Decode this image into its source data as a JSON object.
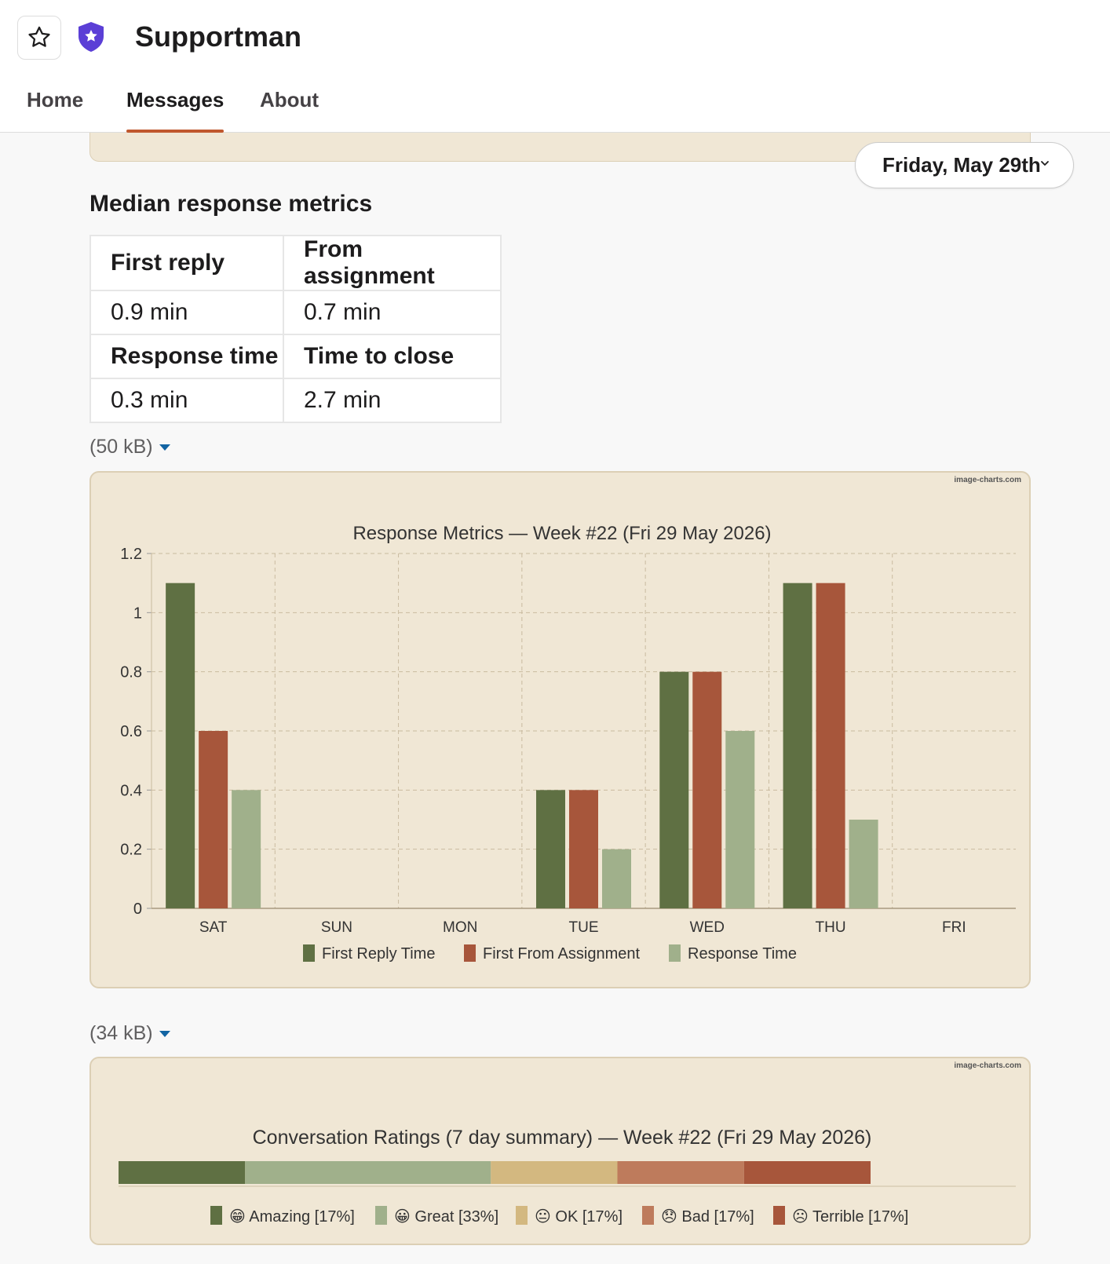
{
  "app": {
    "title": "Supportman"
  },
  "tabs": [
    {
      "label": "Home",
      "active": false
    },
    {
      "label": "Messages",
      "active": true
    },
    {
      "label": "About",
      "active": false
    }
  ],
  "date_picker": {
    "label": "Friday, May 29th"
  },
  "metrics": {
    "title": "Median response metrics",
    "rows": [
      {
        "h1": "First reply",
        "h2": "From assignment",
        "v1": "0.9 min",
        "v2": "0.7 min"
      },
      {
        "h1": "Response time",
        "h2": "Time to close",
        "v1": "0.3 min",
        "v2": "2.7 min"
      }
    ]
  },
  "attachments": [
    {
      "size": "(50 kB)"
    },
    {
      "size": "(34 kB)"
    }
  ],
  "colors": {
    "accent": "#c0582e",
    "card_bg": "#f0e7d5",
    "dark_green": "#5f7043",
    "rust": "#a7563b",
    "light_green": "#a0b08b",
    "tan": "#d3b880",
    "salmon": "#be7b5c"
  },
  "chart_data": [
    {
      "type": "bar",
      "watermark": "image-charts.com",
      "title": "Response Metrics — Week #22 (Fri 29 May 2026)",
      "categories": [
        "SAT",
        "SUN",
        "MON",
        "TUE",
        "WED",
        "THU",
        "FRI"
      ],
      "ylim": [
        0,
        1.2
      ],
      "yticks": [
        "1.2",
        "1",
        "0.8",
        "0.6",
        "0.4",
        "0.2",
        "0"
      ],
      "grid": true,
      "legend_position": "bottom",
      "series": [
        {
          "name": "First Reply Time",
          "color": "#5f7043",
          "values": [
            1.1,
            0,
            0,
            0.4,
            0.8,
            1.1,
            0
          ]
        },
        {
          "name": "First From Assignment",
          "color": "#a7563b",
          "values": [
            0.6,
            0,
            0,
            0.4,
            0.8,
            1.1,
            0
          ]
        },
        {
          "name": "Response Time",
          "color": "#a0b08b",
          "values": [
            0.4,
            0,
            0,
            0.2,
            0.6,
            0.3,
            0
          ]
        }
      ]
    },
    {
      "type": "bar",
      "stacked": true,
      "orientation": "horizontal",
      "watermark": "image-charts.com",
      "title": "Conversation Ratings (7 day summary) — Week #22 (Fri 29 May 2026)",
      "legend_position": "bottom",
      "series": [
        {
          "name": "😁 Amazing [17%]",
          "value": 17,
          "color": "#5f7043"
        },
        {
          "name": "😀 Great [33%]",
          "value": 33,
          "color": "#a0b08b"
        },
        {
          "name": "😐 OK [17%]",
          "value": 17,
          "color": "#d3b880"
        },
        {
          "name": "😞 Bad [17%]",
          "value": 17,
          "color": "#be7b5c"
        },
        {
          "name": "☹ Terrible [17%]",
          "value": 17,
          "color": "#a7563b"
        }
      ]
    }
  ]
}
